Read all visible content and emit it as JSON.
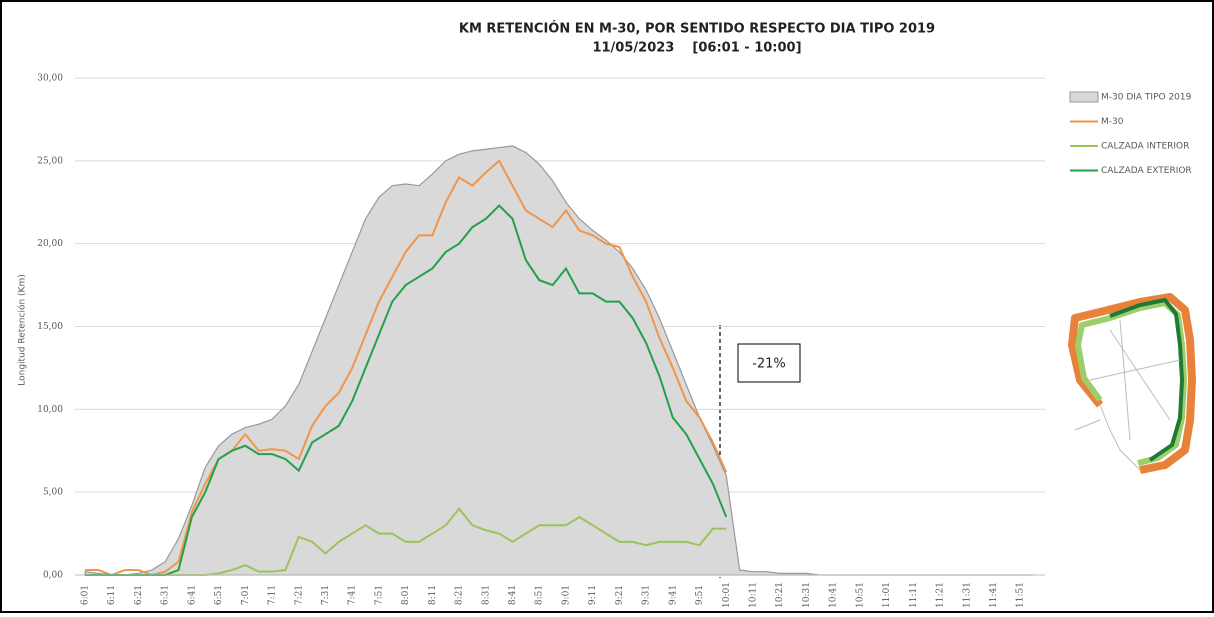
{
  "chart_data": {
    "type": "line",
    "title": "KM RETENCIÓN EN M-30, POR SENTIDO RESPECTO DIA TIPO 2019",
    "subtitle": "11/05/2023    [06:01 - 10:00]",
    "y_label": "Longitud Retención (Km)",
    "annotation": "-21%",
    "grid": true,
    "ylim": [
      0,
      30
    ],
    "yticks": [
      {
        "value": 0,
        "label": "0,00"
      },
      {
        "value": 5,
        "label": "5,00"
      },
      {
        "value": 10,
        "label": "10,00"
      },
      {
        "value": 15,
        "label": "15,00"
      },
      {
        "value": 20,
        "label": "20,00"
      },
      {
        "value": 25,
        "label": "25,00"
      },
      {
        "value": 30,
        "label": "30,00"
      }
    ],
    "categories": [
      "6:01",
      null,
      "6:11",
      null,
      "6:21",
      null,
      "6:31",
      null,
      "6:41",
      null,
      "6:51",
      null,
      "7:01",
      null,
      "7:11",
      null,
      "7:21",
      null,
      "7:31",
      null,
      "7:41",
      null,
      "7:51",
      null,
      "8:01",
      null,
      "8:11",
      null,
      "8:21",
      null,
      "8:31",
      null,
      "8:41",
      null,
      "8:51",
      null,
      "9:01",
      null,
      "9:11",
      null,
      "9:21",
      null,
      "9:31",
      null,
      "9:41",
      null,
      "9:51",
      null,
      "10:01",
      null,
      "10:11",
      null,
      "10:21",
      null,
      "10:31",
      null,
      "10:41",
      null,
      "10:51",
      null,
      "11:01",
      null,
      "11:11",
      null,
      "11:21",
      null,
      "11:31",
      null,
      "11:41",
      null,
      "11:51",
      null
    ],
    "series": [
      {
        "name": "M-30 DIA TIPO 2019",
        "kind": "area",
        "color": "#d9d9d9",
        "values": [
          0.2,
          0.1,
          0,
          0,
          0.1,
          0.3,
          0.8,
          2.2,
          4.2,
          6.5,
          7.8,
          8.5,
          8.9,
          9.1,
          9.4,
          10.2,
          11.5,
          13.5,
          15.5,
          17.5,
          19.5,
          21.5,
          22.8,
          23.5,
          23.6,
          23.5,
          24.2,
          25.0,
          25.4,
          25.6,
          25.7,
          25.8,
          25.9,
          25.5,
          24.8,
          23.8,
          22.5,
          21.5,
          20.8,
          20.2,
          19.5,
          18.5,
          17.2,
          15.5,
          13.5,
          11.5,
          9.5,
          7.8,
          6.0,
          0.3,
          0.2,
          0.2,
          0.1,
          0.1,
          0.1,
          0,
          0,
          0,
          0,
          0,
          0,
          0,
          0,
          0,
          0,
          0,
          0,
          0,
          0,
          0,
          0,
          0
        ]
      },
      {
        "name": "M-30",
        "kind": "line",
        "color": "#f0954a",
        "values": [
          0.3,
          0.3,
          0,
          0.3,
          0.3,
          0,
          0.2,
          0.8,
          3.8,
          5.5,
          7.0,
          7.5,
          8.5,
          7.5,
          7.6,
          7.5,
          7.0,
          9.0,
          10.2,
          11.0,
          12.5,
          14.5,
          16.5,
          18.0,
          19.5,
          20.5,
          20.5,
          22.5,
          24.0,
          23.5,
          24.3,
          25.0,
          23.5,
          22.0,
          21.5,
          21.0,
          22.0,
          20.8,
          20.5,
          20.0,
          19.8,
          18.0,
          16.5,
          14.3,
          12.5,
          10.5,
          9.5,
          8.0,
          6.2,
          null,
          null,
          null,
          null,
          null,
          null,
          null,
          null,
          null,
          null,
          null,
          null,
          null,
          null,
          null,
          null,
          null,
          null,
          null,
          null,
          null,
          null,
          null
        ]
      },
      {
        "name": "CALZADA INTERIOR",
        "kind": "line",
        "color": "#9cc35a",
        "values": [
          0,
          0,
          0,
          0,
          0,
          0,
          0,
          0,
          0,
          0,
          0.1,
          0.3,
          0.6,
          0.2,
          0.2,
          0.3,
          2.3,
          2.0,
          1.3,
          2.0,
          2.5,
          3.0,
          2.5,
          2.5,
          2.0,
          2.0,
          2.5,
          3.0,
          4.0,
          3.0,
          2.7,
          2.5,
          2.0,
          2.5,
          3.0,
          3.0,
          3.0,
          3.5,
          3.0,
          2.5,
          2.0,
          2.0,
          1.8,
          2.0,
          2.0,
          2.0,
          1.8,
          2.8,
          2.8,
          null,
          null,
          null,
          null,
          null,
          null,
          null,
          null,
          null,
          null,
          null,
          null,
          null,
          null,
          null,
          null,
          null,
          null,
          null,
          null,
          null,
          null,
          null
        ]
      },
      {
        "name": "CALZADA EXTERIOR",
        "kind": "line",
        "color": "#23a04a",
        "values": [
          0,
          0,
          0,
          0,
          0,
          0,
          0,
          0.3,
          3.5,
          5.0,
          7.0,
          7.5,
          7.8,
          7.3,
          7.3,
          7.0,
          6.3,
          8.0,
          8.5,
          9.0,
          10.5,
          12.5,
          14.5,
          16.5,
          17.5,
          18.0,
          18.5,
          19.5,
          20.0,
          21.0,
          21.5,
          22.3,
          21.5,
          19.0,
          17.8,
          17.5,
          18.5,
          17.0,
          17.0,
          16.5,
          16.5,
          15.5,
          14.0,
          12.0,
          9.5,
          8.5,
          7.0,
          5.5,
          3.5,
          null,
          null,
          null,
          null,
          null,
          null,
          null,
          null,
          null,
          null,
          null,
          null,
          null,
          null,
          null,
          null,
          null,
          null,
          null,
          null,
          null,
          null,
          null
        ]
      }
    ]
  }
}
